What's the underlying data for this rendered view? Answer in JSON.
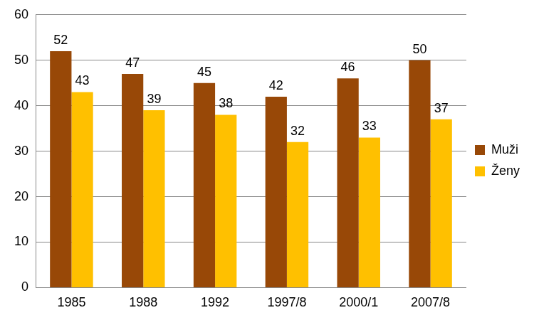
{
  "chart_data": {
    "type": "bar",
    "categories": [
      "1985",
      "1988",
      "1992",
      "1997/8",
      "2000/1",
      "2007/8"
    ],
    "series": [
      {
        "name": "Muži",
        "color": "#984807",
        "values": [
          52,
          47,
          45,
          42,
          46,
          50
        ]
      },
      {
        "name": "Ženy",
        "color": "#ffc000",
        "values": [
          43,
          39,
          38,
          32,
          33,
          37
        ]
      }
    ],
    "ylim": [
      0,
      60
    ],
    "yticks": [
      0,
      10,
      20,
      30,
      40,
      50,
      60
    ],
    "grid": true,
    "legend": "right",
    "data_labels": true
  }
}
